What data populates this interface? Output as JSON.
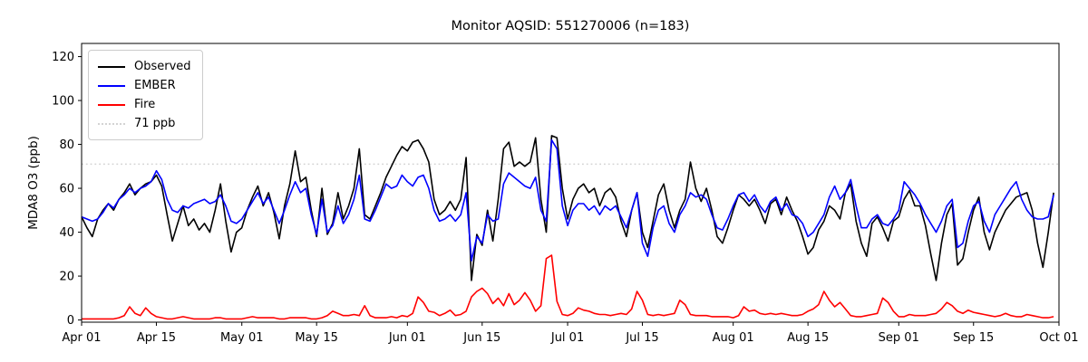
{
  "figure": {
    "background": "#ffffff",
    "frame_color": "#000000"
  },
  "chart_data": {
    "type": "line",
    "title": "Monitor AQSID: 551270006 (n=183)",
    "xlabel": "",
    "ylabel": "MDA8 O3 (ppb)",
    "grid": false,
    "legend_position": "upper left",
    "ylim": [
      -1,
      126
    ],
    "y_ticks": [
      0,
      20,
      40,
      60,
      80,
      100,
      120
    ],
    "x_total_days": 183,
    "x_ticks": [
      {
        "label": "Apr 01",
        "day": 0
      },
      {
        "label": "Apr 15",
        "day": 14
      },
      {
        "label": "May 01",
        "day": 30
      },
      {
        "label": "May 15",
        "day": 44
      },
      {
        "label": "Jun 01",
        "day": 61
      },
      {
        "label": "Jun 15",
        "day": 75
      },
      {
        "label": "Jul 01",
        "day": 91
      },
      {
        "label": "Jul 15",
        "day": 105
      },
      {
        "label": "Aug 01",
        "day": 122
      },
      {
        "label": "Aug 15",
        "day": 136
      },
      {
        "label": "Sep 01",
        "day": 153
      },
      {
        "label": "Sep 15",
        "day": 167
      },
      {
        "label": "Oct 01",
        "day": 183
      }
    ],
    "threshold": {
      "label": "71 ppb",
      "value": 71,
      "color": "#d3d3d3",
      "style": "dotted"
    },
    "series": [
      {
        "name": "Observed",
        "color": "#000000",
        "values": [
          47,
          42,
          38,
          46,
          50,
          53,
          50,
          55,
          58,
          62,
          57,
          60,
          62,
          63,
          66,
          61,
          48,
          36,
          44,
          52,
          43,
          46,
          41,
          44,
          40,
          50,
          62,
          45,
          31,
          40,
          42,
          50,
          56,
          61,
          52,
          58,
          49,
          37,
          52,
          62,
          77,
          63,
          65,
          50,
          38,
          60,
          39,
          44,
          58,
          46,
          52,
          60,
          78,
          48,
          46,
          52,
          58,
          65,
          70,
          75,
          79,
          77,
          81,
          82,
          78,
          72,
          55,
          48,
          50,
          54,
          50,
          55,
          74,
          18,
          39,
          34,
          50,
          36,
          55,
          78,
          81,
          70,
          72,
          70,
          72,
          83,
          55,
          40,
          84,
          83,
          60,
          46,
          55,
          60,
          62,
          58,
          60,
          52,
          58,
          60,
          56,
          45,
          38,
          50,
          58,
          40,
          33,
          45,
          57,
          62,
          50,
          42,
          50,
          55,
          72,
          60,
          54,
          60,
          50,
          38,
          35,
          42,
          50,
          57,
          55,
          52,
          55,
          50,
          44,
          53,
          55,
          48,
          56,
          50,
          45,
          38,
          30,
          33,
          41,
          45,
          52,
          50,
          46,
          58,
          62,
          45,
          35,
          29,
          44,
          47,
          42,
          36,
          45,
          47,
          55,
          59,
          52,
          52,
          43,
          30,
          18,
          35,
          48,
          53,
          25,
          28,
          40,
          50,
          56,
          40,
          32,
          40,
          45,
          50,
          53,
          56,
          57,
          58,
          50,
          35,
          24,
          40,
          58
        ]
      },
      {
        "name": "EMBER",
        "color": "#0000ff",
        "values": [
          47,
          46,
          45,
          46,
          49,
          53,
          51,
          55,
          57,
          60,
          58,
          60,
          61,
          63,
          68,
          64,
          55,
          50,
          49,
          52,
          51,
          53,
          54,
          55,
          53,
          54,
          57,
          52,
          45,
          44,
          46,
          50,
          54,
          58,
          53,
          56,
          50,
          44,
          50,
          57,
          63,
          58,
          60,
          48,
          39,
          55,
          40,
          43,
          52,
          44,
          48,
          55,
          66,
          46,
          45,
          50,
          56,
          62,
          60,
          61,
          66,
          63,
          61,
          65,
          66,
          60,
          50,
          45,
          46,
          48,
          45,
          48,
          58,
          27,
          38,
          35,
          48,
          45,
          46,
          62,
          67,
          65,
          63,
          61,
          60,
          65,
          50,
          45,
          82,
          78,
          52,
          43,
          50,
          53,
          53,
          50,
          52,
          48,
          52,
          50,
          52,
          47,
          42,
          50,
          58,
          35,
          29,
          42,
          50,
          52,
          44,
          40,
          48,
          52,
          58,
          56,
          57,
          55,
          48,
          42,
          41,
          46,
          52,
          57,
          58,
          54,
          57,
          52,
          49,
          54,
          56,
          50,
          53,
          48,
          47,
          44,
          38,
          40,
          44,
          48,
          56,
          61,
          55,
          58,
          64,
          52,
          42,
          42,
          46,
          48,
          44,
          43,
          46,
          50,
          63,
          60,
          57,
          53,
          48,
          44,
          40,
          45,
          52,
          55,
          33,
          35,
          45,
          52,
          54,
          45,
          40,
          48,
          52,
          56,
          60,
          63,
          55,
          50,
          47,
          46,
          46,
          47,
          57
        ]
      },
      {
        "name": "Fire",
        "color": "#ff0000",
        "values": [
          0.5,
          0.5,
          0.5,
          0.5,
          0.5,
          0.5,
          0.5,
          1,
          2,
          6,
          3,
          2,
          5.5,
          3,
          1.5,
          1,
          0.5,
          0.5,
          1,
          1.5,
          1,
          0.5,
          0.5,
          0.5,
          0.5,
          1,
          1,
          0.5,
          0.5,
          0.5,
          0.5,
          1,
          1.5,
          1,
          1,
          1,
          1,
          0.5,
          0.5,
          1,
          1,
          1,
          1,
          0.5,
          0.5,
          1,
          2,
          4,
          3,
          2,
          2,
          2.5,
          2,
          6.5,
          2,
          1,
          1,
          1,
          1.5,
          1,
          2,
          1.5,
          3,
          10.5,
          8,
          4,
          3.5,
          2,
          3,
          4.5,
          2,
          2.5,
          4,
          10.5,
          13,
          14.5,
          12,
          7.5,
          10,
          6.5,
          12,
          7,
          9,
          12.5,
          9,
          4,
          6.5,
          28,
          29.5,
          8.5,
          2.5,
          2,
          3,
          5.5,
          4.5,
          4,
          3,
          2.5,
          2.5,
          2,
          2.5,
          3,
          2.5,
          5,
          13,
          9,
          2.5,
          2,
          2.5,
          2,
          2.5,
          3,
          9,
          7,
          2.5,
          2,
          2,
          2,
          1.5,
          1.5,
          1.5,
          1.5,
          1,
          2,
          6,
          4,
          4.5,
          3,
          2.5,
          3,
          2.5,
          3,
          2.5,
          2,
          2,
          2.5,
          4,
          5,
          7,
          13,
          9,
          6,
          8,
          5,
          2,
          1.5,
          1.5,
          2,
          2.5,
          3,
          10,
          8,
          4,
          1.5,
          1.5,
          2.5,
          2,
          2,
          2,
          2.5,
          3,
          5,
          8,
          6.5,
          4,
          3,
          4.5,
          3.5,
          3,
          2.5,
          2,
          1.5,
          2,
          3,
          2,
          1.5,
          1.5,
          2.5,
          2,
          1.5,
          1,
          1,
          1.5
        ]
      }
    ]
  }
}
